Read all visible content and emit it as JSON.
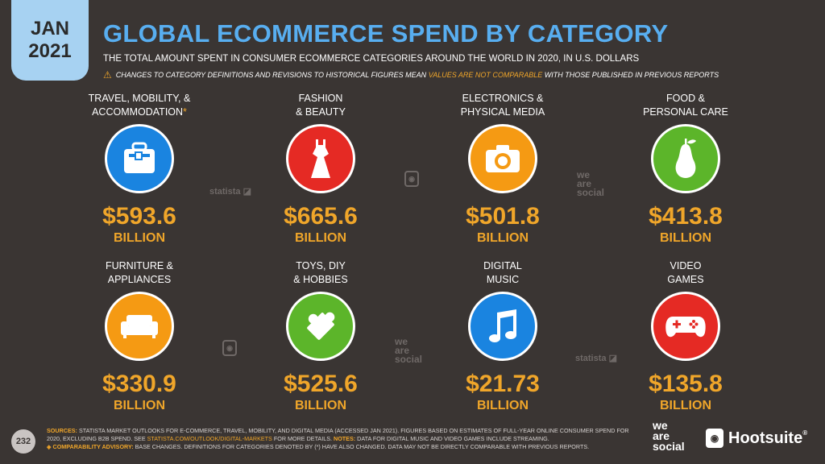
{
  "header": {
    "month": "JAN",
    "year": "2021",
    "title": "GLOBAL ECOMMERCE SPEND BY CATEGORY",
    "subtitle": "THE TOTAL AMOUNT SPENT IN CONSUMER ECOMMERCE CATEGORIES AROUND THE WORLD IN 2020, IN U.S. DOLLARS",
    "advisory_pre": "CHANGES TO CATEGORY DEFINITIONS AND REVISIONS TO HISTORICAL FIGURES MEAN",
    "advisory_highlight": "VALUES ARE NOT COMPARABLE",
    "advisory_post": "WITH THOSE PUBLISHED IN PREVIOUS REPORTS"
  },
  "categories": [
    {
      "line1": "TRAVEL, MOBILITY, &",
      "line2": "ACCOMMODATION",
      "star": "*",
      "value": "$593.6",
      "unit": "BILLION",
      "icon": "suitcase-icon",
      "color": "#1a84e0"
    },
    {
      "line1": "FASHION",
      "line2": "& BEAUTY",
      "star": "",
      "value": "$665.6",
      "unit": "BILLION",
      "icon": "dress-icon",
      "color": "#e52a24"
    },
    {
      "line1": "ELECTRONICS &",
      "line2": "PHYSICAL MEDIA",
      "star": "",
      "value": "$501.8",
      "unit": "BILLION",
      "icon": "camera-icon",
      "color": "#f59a13"
    },
    {
      "line1": "FOOD &",
      "line2": "PERSONAL CARE",
      "star": "",
      "value": "$413.8",
      "unit": "BILLION",
      "icon": "pear-icon",
      "color": "#5cb52a"
    },
    {
      "line1": "FURNITURE &",
      "line2": "APPLIANCES",
      "star": "",
      "value": "$330.9",
      "unit": "BILLION",
      "icon": "sofa-icon",
      "color": "#f59a13"
    },
    {
      "line1": "TOYS, DIY",
      "line2": "& HOBBIES",
      "star": "",
      "value": "$525.6",
      "unit": "BILLION",
      "icon": "puzzle-icon",
      "color": "#5cb52a"
    },
    {
      "line1": "DIGITAL",
      "line2": "MUSIC",
      "star": "",
      "value": "$21.73",
      "unit": "BILLION",
      "icon": "music-note-icon",
      "color": "#1a84e0"
    },
    {
      "line1": "VIDEO",
      "line2": "GAMES",
      "star": "",
      "value": "$135.8",
      "unit": "BILLION",
      "icon": "gamepad-icon",
      "color": "#e52a24"
    }
  ],
  "watermarks": {
    "statista": "statista",
    "we": "we",
    "are": "are",
    "social": "social"
  },
  "footer": {
    "page": "232",
    "sources_label": "SOURCES:",
    "sources_text": "STATISTA MARKET OUTLOOKS FOR E-COMMERCE, TRAVEL, MOBILITY, AND DIGITAL MEDIA (ACCESSED JAN 2021). FIGURES BASED ON ESTIMATES OF FULL-YEAR ONLINE CONSUMER SPEND FOR 2020, EXCLUDING B2B SPEND. SEE",
    "link": "STATISTA.COM/OUTLOOK/DIGITAL-MARKETS",
    "sources_tail": "FOR MORE DETAILS.",
    "notes_label": "NOTES:",
    "notes_text": "DATA FOR DIGITAL MUSIC AND VIDEO GAMES INCLUDE STREAMING.",
    "advisory_label": "◈ COMPARABILITY ADVISORY:",
    "advisory_text": "BASE CHANGES. DEFINITIONS FOR CATEGORIES DENOTED BY (*) HAVE ALSO CHANGED. DATA MAY NOT BE DIRECTLY COMPARABLE WITH PREVIOUS REPORTS.",
    "brand_we": "we",
    "brand_are": "are",
    "brand_social": "social",
    "brand_hootsuite": "Hootsuite",
    "brand_hootsuite_mark": "®"
  }
}
